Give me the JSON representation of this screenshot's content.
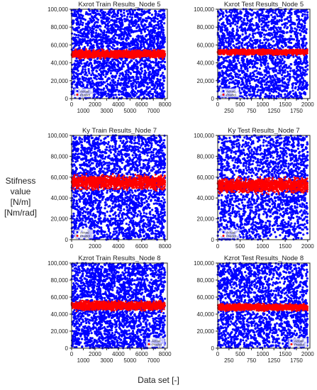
{
  "figure": {
    "ylabel_lines": [
      "Stifness",
      "value",
      "[N/m]",
      "[Nm/rad]"
    ],
    "xlabel": "Data set [-]"
  },
  "chart_data": [
    {
      "type": "scatter",
      "title": "Kxrot Train Results_Node 5",
      "xlim": [
        0,
        8200
      ],
      "ylim": [
        0,
        100000
      ],
      "xticks": [
        1000,
        2000,
        3000,
        4000,
        5000,
        6000,
        7000,
        8000
      ],
      "xticklabels": [
        "1000",
        "",
        "3000",
        "",
        "5000",
        "",
        "7000",
        ""
      ],
      "xticklabels_top": [
        "0",
        "",
        "2000",
        "",
        "4000",
        "",
        "6000",
        "8000"
      ],
      "yticks": [
        0,
        20000,
        40000,
        60000,
        80000,
        100000
      ],
      "yticklabels": [
        "0",
        "20,000",
        "40,000",
        "60,000",
        "80,000",
        "100,000"
      ],
      "n_points": 8000,
      "series": [
        {
          "name": "Actual",
          "color": "#0000ff",
          "distribution": "uniform",
          "range": [
            0,
            100000
          ]
        },
        {
          "name": "Predict",
          "color": "#ff0000",
          "distribution": "band",
          "center": 50000,
          "halfwidth": 6000
        }
      ],
      "legend": "bottom-left"
    },
    {
      "type": "scatter",
      "title": "Kxrot Test Results_Node 5",
      "xlim": [
        0,
        2050
      ],
      "ylim": [
        0,
        100000
      ],
      "xticks": [
        250,
        500,
        750,
        1000,
        1250,
        1500,
        1750,
        2000
      ],
      "xticklabels": [
        "250",
        "",
        "750",
        "",
        "1250",
        "",
        "1750",
        ""
      ],
      "xticklabels_top": [
        "0",
        "",
        "500",
        "",
        "1000",
        "",
        "1500",
        "2000"
      ],
      "yticks": [
        0,
        20000,
        40000,
        60000,
        80000,
        100000
      ],
      "yticklabels": [
        "0",
        "20,000",
        "40,000",
        "60,000",
        "80,000",
        "100,000"
      ],
      "n_points": 2000,
      "series": [
        {
          "name": "Actual",
          "color": "#0000ff",
          "distribution": "uniform",
          "range": [
            0,
            100000
          ]
        },
        {
          "name": "Predict",
          "color": "#ff0000",
          "distribution": "band",
          "center": 52000,
          "halfwidth": 4000
        }
      ],
      "legend": "bottom-left"
    },
    {
      "type": "scatter",
      "title": "Ky Train Results_Node 7",
      "xlim": [
        0,
        8200
      ],
      "ylim": [
        0,
        100000
      ],
      "xticks": [
        1000,
        2000,
        3000,
        4000,
        5000,
        6000,
        7000,
        8000
      ],
      "xticklabels": [
        "0",
        "2000",
        "4000",
        "6000",
        "8000"
      ],
      "xticks_shown": [
        0,
        2000,
        4000,
        6000,
        8000
      ],
      "yticks": [
        0,
        20000,
        40000,
        60000,
        80000,
        100000
      ],
      "yticklabels": [
        "0",
        "20,000",
        "40,000",
        "60,000",
        "80,000",
        "100,000"
      ],
      "n_points": 8000,
      "series": [
        {
          "name": "Actual",
          "color": "#0000ff",
          "distribution": "uniform",
          "range": [
            0,
            100000
          ]
        },
        {
          "name": "Predict",
          "color": "#ff0000",
          "distribution": "band",
          "center": 55000,
          "halfwidth": 9000
        }
      ],
      "legend": "bottom-left"
    },
    {
      "type": "scatter",
      "title": "Ky Test Results_Node 7",
      "xlim": [
        0,
        2050
      ],
      "ylim": [
        0,
        100000
      ],
      "xticks_shown": [
        0,
        500,
        1000,
        1500,
        2000
      ],
      "xticklabels": [
        "0",
        "500",
        "1000",
        "1500",
        "2000"
      ],
      "yticks": [
        0,
        20000,
        40000,
        60000,
        80000,
        100000
      ],
      "yticklabels": [
        "0",
        "20,000",
        "40,000",
        "60,000",
        "80,000",
        "100,000"
      ],
      "n_points": 2000,
      "series": [
        {
          "name": "Actual",
          "color": "#0000ff",
          "distribution": "uniform",
          "range": [
            0,
            100000
          ]
        },
        {
          "name": "Predict",
          "color": "#ff0000",
          "distribution": "band",
          "center": 52000,
          "halfwidth": 9000
        }
      ],
      "legend": "bottom-left"
    },
    {
      "type": "scatter",
      "title": "Kzrot Train Results_Node 8",
      "xlim": [
        0,
        8200
      ],
      "ylim": [
        0,
        100000
      ],
      "xticks": [
        1000,
        2000,
        3000,
        4000,
        5000,
        6000,
        7000,
        8000
      ],
      "xticklabels": [
        "1000",
        "",
        "3000",
        "",
        "5000",
        "",
        "7000",
        ""
      ],
      "xticklabels_top": [
        "0",
        "",
        "2000",
        "",
        "4000",
        "",
        "6000",
        "8000"
      ],
      "yticks": [
        0,
        20000,
        40000,
        60000,
        80000,
        100000
      ],
      "yticklabels": [
        "0",
        "20,000",
        "40,000",
        "60,000",
        "80,000",
        "100,000"
      ],
      "n_points": 8000,
      "series": [
        {
          "name": "Actual",
          "color": "#0000ff",
          "distribution": "uniform",
          "range": [
            0,
            100000
          ]
        },
        {
          "name": "Predict",
          "color": "#ff0000",
          "distribution": "band",
          "center": 50000,
          "halfwidth": 7000
        }
      ],
      "legend": "bottom-right"
    },
    {
      "type": "scatter",
      "title": "Kzrot Test Results_Node 8",
      "xlim": [
        0,
        2050
      ],
      "ylim": [
        0,
        100000
      ],
      "xticks": [
        250,
        500,
        750,
        1000,
        1250,
        1500,
        1750,
        2000
      ],
      "xticklabels": [
        "250",
        "",
        "750",
        "",
        "1250",
        "",
        "1750",
        ""
      ],
      "xticklabels_top": [
        "0",
        "",
        "500",
        "",
        "1000",
        "",
        "1500",
        "2000"
      ],
      "yticks": [
        0,
        20000,
        40000,
        60000,
        80000,
        100000
      ],
      "yticklabels": [
        "0",
        "20,000",
        "40,000",
        "60,000",
        "80,000",
        "100,000"
      ],
      "n_points": 2000,
      "series": [
        {
          "name": "Actual",
          "color": "#0000ff",
          "distribution": "uniform",
          "range": [
            0,
            100000
          ]
        },
        {
          "name": "Predict",
          "color": "#ff0000",
          "distribution": "band",
          "center": 48000,
          "halfwidth": 5000
        }
      ],
      "legend": "bottom-right"
    }
  ]
}
